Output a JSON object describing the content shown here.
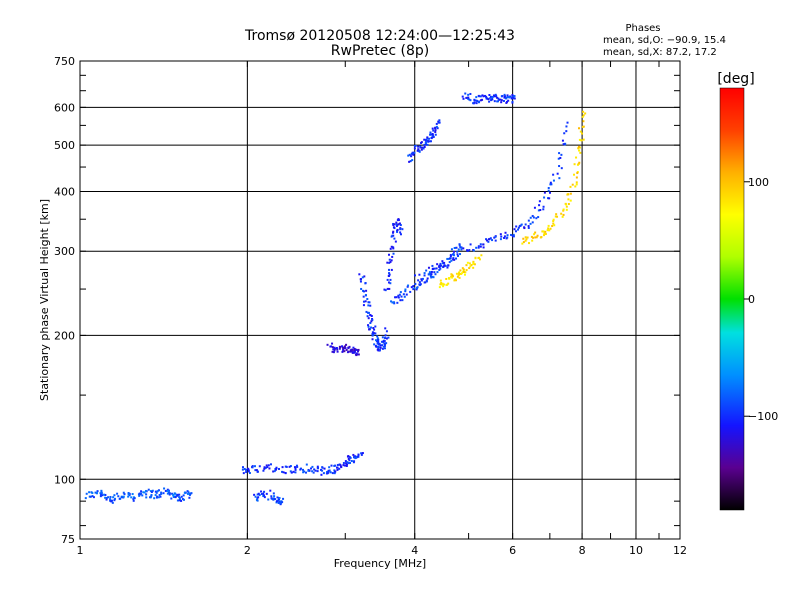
{
  "chart_data": {
    "type": "scatter",
    "title": "Tromsø 20120508 12:24:00—12:25:43",
    "subtitle": "RwPretec (8p)",
    "xlabel": "Frequency [MHz]",
    "ylabel": "Stationary phase Virtual Height [km]",
    "x_scale": "log",
    "y_scale": "log",
    "xlim": [
      1,
      12
    ],
    "ylim": [
      75,
      750
    ],
    "x_ticks": [
      1,
      2,
      4,
      6,
      8,
      10,
      12
    ],
    "x_tick_labels": [
      "1",
      "2",
      "4",
      "6",
      "8",
      "10",
      "12"
    ],
    "y_ticks": [
      75,
      100,
      200,
      300,
      400,
      500,
      600,
      750
    ],
    "y_tick_labels": [
      "75",
      "100",
      "200",
      "300",
      "400",
      "500",
      "600",
      "750"
    ],
    "x_gridlines": [
      2,
      4,
      6,
      8,
      10,
      12
    ],
    "y_gridlines": [
      100,
      200,
      300,
      400,
      500,
      600
    ],
    "grid": true,
    "phases_box": {
      "title": "Phases",
      "line1": "mean, sd,O: −90.9, 15.4",
      "line2": "mean, sd,X:  87.2, 17.2"
    },
    "colorbar": {
      "label": "[deg]",
      "ticks": [
        100,
        0,
        -100
      ],
      "tick_labels": [
        "100",
        "0",
        "−100"
      ],
      "range": [
        -180,
        180
      ],
      "colormap": [
        "#000000",
        "#5a0090",
        "#1414ff",
        "#0090ff",
        "#00e0e0",
        "#00e000",
        "#b0ff00",
        "#ffff00",
        "#ffb000",
        "#ff4000",
        "#ff0000"
      ]
    },
    "series": [
      {
        "segments": [
          {
            "x": [
              1.02,
              1.08,
              1.12,
              1.18,
              1.24,
              1.3,
              1.36,
              1.42,
              1.48,
              1.52,
              1.58
            ],
            "y": [
              93,
              94,
              91,
              93,
              92,
              94,
              93,
              95,
              92,
              92,
              94
            ],
            "phase": -90
          },
          {
            "x": [
              1.95,
              2.05,
              2.2,
              2.35,
              2.5,
              2.65,
              2.78,
              2.9,
              3.0,
              3.1,
              3.2
            ],
            "y": [
              105,
              106,
              106,
              105,
              106,
              105,
              104,
              106,
              109,
              111,
              113
            ],
            "phase": -100
          },
          {
            "x": [
              2.05,
              2.15,
              2.25,
              2.3
            ],
            "y": [
              92,
              94,
              91,
              90
            ],
            "phase": -95
          },
          {
            "x": [
              2.8,
              2.9,
              3.0,
              3.1,
              3.15
            ],
            "y": [
              190,
              188,
              189,
              187,
              186
            ],
            "phase": -120
          },
          {
            "x": [
              3.2,
              3.25,
              3.3,
              3.35,
              3.4,
              3.45,
              3.5,
              3.55
            ],
            "y": [
              270,
              240,
              220,
              205,
              195,
              190,
              192,
              205
            ],
            "phase": -100
          },
          {
            "x": [
              3.55,
              3.6,
              3.65,
              3.7,
              3.75
            ],
            "y": [
              250,
              280,
              320,
              350,
              330
            ],
            "phase": -105
          },
          {
            "x": [
              3.6,
              3.8,
              4.0,
              4.2,
              4.4,
              4.6,
              4.8
            ],
            "y": [
              235,
              245,
              255,
              265,
              275,
              290,
              310
            ],
            "phase": -95
          },
          {
            "x": [
              4.0,
              4.4,
              4.8,
              5.2,
              5.6,
              6.0,
              6.4,
              6.8,
              7.2,
              7.5
            ],
            "y": [
              265,
              280,
              300,
              310,
              320,
              330,
              345,
              380,
              440,
              560
            ],
            "phase": -100
          },
          {
            "x": [
              4.4,
              4.6,
              4.8,
              5.0,
              5.2
            ],
            "y": [
              255,
              262,
              270,
              282,
              292
            ],
            "phase": 85
          },
          {
            "x": [
              6.2,
              6.6,
              7.0,
              7.4,
              7.7,
              7.9,
              8.0
            ],
            "y": [
              315,
              325,
              340,
              370,
              420,
              500,
              590
            ],
            "phase": 90
          },
          {
            "x": [
              3.9,
              4.0,
              4.1,
              4.2,
              4.3,
              4.4
            ],
            "y": [
              470,
              490,
              505,
              515,
              530,
              560
            ],
            "phase": -100
          },
          {
            "x": [
              4.9,
              5.1,
              5.3,
              5.5,
              5.7,
              5.9,
              6.0
            ],
            "y": [
              635,
              625,
              628,
              632,
              630,
              625,
              630
            ],
            "phase": -100
          }
        ]
      }
    ]
  }
}
